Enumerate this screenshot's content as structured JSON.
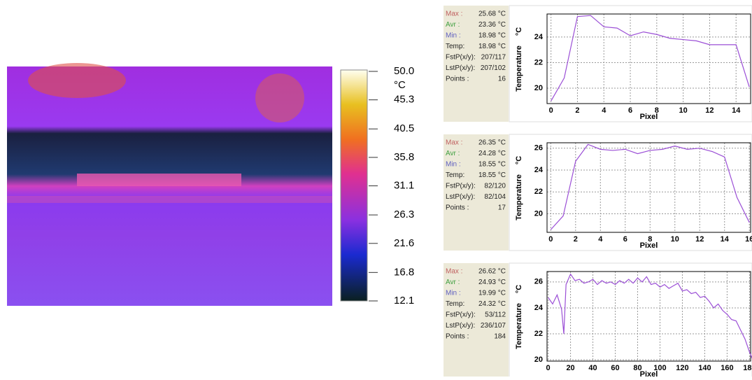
{
  "colorbar": {
    "unit": "°C",
    "lim": [
      12.1,
      50
    ],
    "ticks": [
      {
        "value": 50,
        "label": "50.0"
      },
      45.3,
      40.5,
      35.8,
      31.1,
      26.3,
      21.6,
      16.8,
      12.1
    ]
  },
  "chart_data": [
    {
      "type": "line",
      "xlabel": "Pixel",
      "ylabel": "Temperature",
      "yunit": "°C",
      "color": "#9b4fd6",
      "stats": [
        {
          "label": "Max :",
          "value": "25.68 °C",
          "color": "#c06060"
        },
        {
          "label": "Avr :",
          "value": "23.36 °C",
          "color": "#40a040"
        },
        {
          "label": "Min :",
          "value": "18.98 °C",
          "color": "#6060c0"
        },
        {
          "label": "Temp:",
          "value": "18.98 °C",
          "color": "#222222"
        },
        {
          "label": "FstP(x/y):",
          "value": "207/117",
          "color": "#222222"
        },
        {
          "label": "LstP(x/y):",
          "value": "207/102",
          "color": "#222222"
        },
        {
          "label": "Points :",
          "value": "16",
          "color": "#222222"
        }
      ],
      "x": [
        0,
        1,
        2,
        3,
        4,
        5,
        6,
        7,
        8,
        9,
        10,
        11,
        12,
        13,
        14,
        15
      ],
      "values": [
        19,
        20.8,
        25.6,
        25.68,
        24.8,
        24.7,
        24.1,
        24.4,
        24.2,
        23.9,
        23.8,
        23.7,
        23.4,
        23.4,
        23.4,
        20.1
      ],
      "xlim": [
        -0.3,
        15.1
      ],
      "ylim": [
        18.8,
        25.8
      ],
      "xticks": [
        0,
        2,
        4,
        6,
        8,
        10,
        12,
        14
      ],
      "yticks": [
        20,
        22,
        24
      ],
      "grid": true
    },
    {
      "type": "line",
      "xlabel": "Pixel",
      "ylabel": "Temperature",
      "yunit": "°C",
      "color": "#9b4fd6",
      "stats": [
        {
          "label": "Max :",
          "value": "26.35 °C",
          "color": "#c06060"
        },
        {
          "label": "Avr :",
          "value": "24.28 °C",
          "color": "#40a040"
        },
        {
          "label": "Min :",
          "value": "18.55 °C",
          "color": "#6060c0"
        },
        {
          "label": "Temp:",
          "value": "18.55 °C",
          "color": "#222222"
        },
        {
          "label": "FstP(x/y):",
          "value": "82/120",
          "color": "#222222"
        },
        {
          "label": "LstP(x/y):",
          "value": "82/104",
          "color": "#222222"
        },
        {
          "label": "Points :",
          "value": "17",
          "color": "#222222"
        }
      ],
      "x": [
        0,
        1,
        2,
        3,
        4,
        5,
        6,
        7,
        8,
        9,
        10,
        11,
        12,
        13,
        14,
        15,
        16
      ],
      "values": [
        18.55,
        19.8,
        24.8,
        26.35,
        25.9,
        25.8,
        25.9,
        25.5,
        25.8,
        25.9,
        26.2,
        25.9,
        26,
        25.7,
        25.2,
        21.5,
        19.2
      ],
      "xlim": [
        -0.3,
        16.1
      ],
      "ylim": [
        18.3,
        26.5
      ],
      "xticks": [
        0,
        2,
        4,
        6,
        8,
        10,
        12,
        14,
        16
      ],
      "yticks": [
        20,
        22,
        24,
        26
      ],
      "grid": true
    },
    {
      "type": "line",
      "xlabel": "Pixel",
      "ylabel": "Temperature",
      "yunit": "°C",
      "color": "#9b4fd6",
      "stats": [
        {
          "label": "Max :",
          "value": "26.62 °C",
          "color": "#c06060"
        },
        {
          "label": "Avr :",
          "value": "24.93 °C",
          "color": "#40a040"
        },
        {
          "label": "Min :",
          "value": "19.99 °C",
          "color": "#6060c0"
        },
        {
          "label": "Temp:",
          "value": "24.32 °C",
          "color": "#222222"
        },
        {
          "label": "FstP(x/y):",
          "value": "53/112",
          "color": "#222222"
        },
        {
          "label": "LstP(x/y):",
          "value": "236/107",
          "color": "#222222"
        },
        {
          "label": "Points :",
          "value": "184",
          "color": "#222222"
        }
      ],
      "x": [
        0,
        4,
        8,
        12,
        14,
        16,
        20,
        24,
        28,
        32,
        36,
        40,
        44,
        48,
        52,
        56,
        60,
        64,
        68,
        72,
        76,
        80,
        84,
        88,
        92,
        96,
        100,
        104,
        108,
        112,
        116,
        120,
        124,
        128,
        132,
        136,
        140,
        144,
        148,
        152,
        156,
        160,
        164,
        168,
        172,
        176,
        180,
        183
      ],
      "values": [
        24.8,
        24.3,
        25,
        23.9,
        22,
        25.8,
        26.6,
        26.1,
        26.2,
        25.9,
        26,
        26.2,
        25.8,
        26.1,
        25.9,
        26,
        25.8,
        26.1,
        25.9,
        26.2,
        25.9,
        26.3,
        26,
        26.4,
        25.8,
        25.9,
        25.6,
        25.8,
        25.5,
        25.7,
        25.9,
        25.3,
        25.4,
        25.1,
        25.2,
        24.8,
        24.9,
        24.5,
        24,
        24.3,
        23.8,
        23.5,
        23.1,
        23,
        22.3,
        21.6,
        20.6,
        20
      ],
      "xlim": [
        -1,
        181
      ],
      "ylim": [
        19.9,
        26.8
      ],
      "xticks": [
        0,
        20,
        40,
        60,
        80,
        100,
        120,
        140,
        160,
        180
      ],
      "yticks": [
        20,
        22,
        24,
        26
      ],
      "grid": true
    }
  ]
}
